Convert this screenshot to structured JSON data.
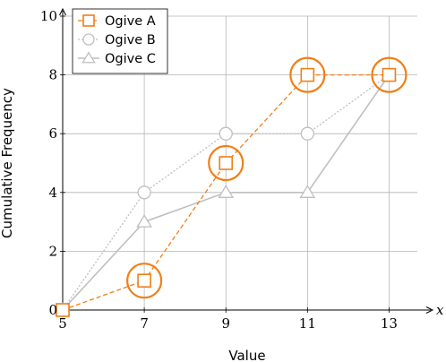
{
  "chart_data": {
    "type": "line",
    "xlabel": "Value",
    "ylabel": "Cumulative Frequency",
    "x_axis_var": "x",
    "x_ticks": [
      "5",
      "7",
      "9",
      "11",
      "13"
    ],
    "y_ticks": [
      "0",
      "2",
      "4",
      "6",
      "8",
      "10"
    ],
    "xlim": [
      5,
      14
    ],
    "ylim": [
      0,
      10
    ],
    "grid": true,
    "legend_position": "top-left",
    "x": [
      5,
      7,
      9,
      11,
      13
    ],
    "series": [
      {
        "name": "Ogive A",
        "values": [
          0,
          1,
          5,
          8,
          8
        ],
        "color": "#f07f17",
        "marker": "square",
        "line_style": "dashed",
        "highlighted_x": [
          7,
          9,
          11,
          13
        ]
      },
      {
        "name": "Ogive B",
        "values": [
          0,
          4,
          6,
          6,
          8
        ],
        "color": "#bfbfbf",
        "marker": "circle",
        "line_style": "dotted"
      },
      {
        "name": "Ogive C",
        "values": [
          0,
          3,
          4,
          4,
          8
        ],
        "color": "#bfbfbf",
        "marker": "triangle",
        "line_style": "solid"
      }
    ]
  }
}
